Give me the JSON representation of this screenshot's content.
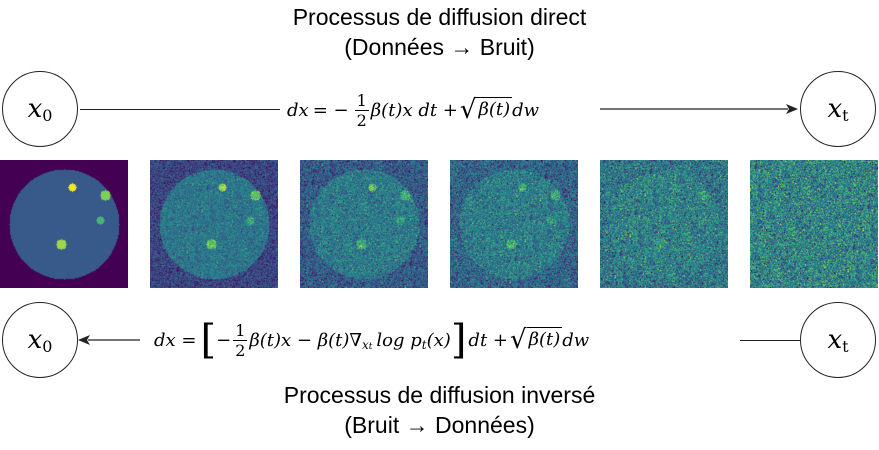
{
  "forward": {
    "title_line1": "Processus de diffusion direct",
    "title_line2": "(Données → Bruit)",
    "start_node": {
      "var": "x",
      "sub": "0"
    },
    "end_node": {
      "var": "x",
      "sub": "t"
    },
    "equation": {
      "lhs": "dx",
      "eq": "= −",
      "frac_num": "1",
      "frac_den": "2",
      "drift": "β(t)x dt +",
      "sqrt_body": "β(t)",
      "noise": "dw"
    }
  },
  "images": {
    "colormap": "viridis",
    "noise_levels": [
      0.0,
      0.35,
      0.55,
      0.65,
      0.85,
      1.0
    ],
    "labels": [
      "",
      "",
      "",
      "",
      "",
      ""
    ]
  },
  "reverse": {
    "title_line1": "Processus de diffusion inversé",
    "title_line2": "(Bruit → Données)",
    "start_node": {
      "var": "x",
      "sub": "t"
    },
    "end_node": {
      "var": "x",
      "sub": "0"
    },
    "equation": {
      "lhs": "dx =",
      "open": "[",
      "minus": "−",
      "frac_num": "1",
      "frac_den": "2",
      "drift": "β(t)x − β(t)∇",
      "grad_sub": "x",
      "grad_subsub": "t",
      "score": "log p",
      "score_sub": "t",
      "score_arg": "(x)",
      "close": "]",
      "dt": "dt +",
      "sqrt_body": "β(t)",
      "noise": "dw"
    }
  },
  "colors": {
    "stroke": "#222222",
    "background": "#ffffff"
  }
}
